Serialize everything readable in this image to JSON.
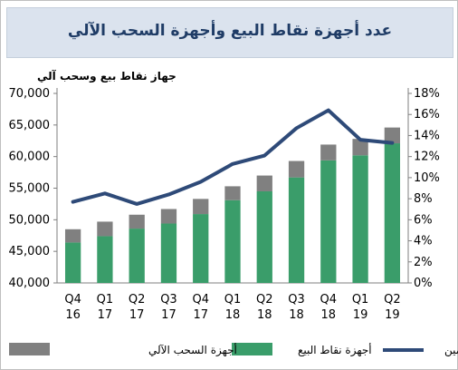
{
  "chart_data": {
    "type": "bar",
    "title": "عدد أجهزة نقاط البيع وأجهزة السحب الآلي",
    "ylabel": "جهاز نقاط بيع وسحب آلي",
    "categories": [
      "Q4\n16",
      "Q1\n17",
      "Q2\n17",
      "Q3\n17",
      "Q4\n17",
      "Q1\n18",
      "Q2\n18",
      "Q3\n18",
      "Q4\n18",
      "Q1\n19",
      "Q2\n19"
    ],
    "ylim": [
      40000,
      70000
    ],
    "yticks": [
      "40,000",
      "45,000",
      "50,000",
      "55,000",
      "60,000",
      "65,000",
      "70,000"
    ],
    "y2lim": [
      0,
      18
    ],
    "y2ticks": [
      "0%",
      "2%",
      "4%",
      "6%",
      "8%",
      "10%",
      "12%",
      "14%",
      "16%",
      "18%"
    ],
    "stacked": true,
    "series": [
      {
        "name": "أجهزة نقاط البيع",
        "type": "bar",
        "color": "#3a9d6a",
        "values": [
          46400,
          47400,
          48600,
          49400,
          50900,
          53100,
          54500,
          56700,
          59400,
          60200,
          62100
        ]
      },
      {
        "name": "أجهزة السحب الآلي",
        "type": "bar",
        "color": "#808080",
        "values": [
          2100,
          2300,
          2200,
          2300,
          2400,
          2200,
          2500,
          2600,
          2500,
          2600,
          2500
        ]
      },
      {
        "name": "معدل النمو السنوي - يمين",
        "type": "line",
        "axis": "right",
        "color": "#2e4a78",
        "values": [
          7.7,
          8.5,
          7.5,
          8.4,
          9.6,
          11.3,
          12.1,
          14.7,
          16.4,
          13.6,
          13.3
        ]
      }
    ],
    "legend_position": "bottom",
    "grid": false
  }
}
